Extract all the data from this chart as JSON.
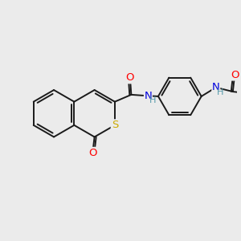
{
  "background_color": "#ebebeb",
  "bond_color": "#1a1a1a",
  "bond_width": 1.4,
  "atom_colors": {
    "O": "#ff0000",
    "S": "#ccaa00",
    "N": "#0000dd",
    "H": "#5599aa"
  },
  "font_size": 9.5,
  "fig_width": 3.0,
  "fig_height": 3.0,
  "dpi": 100,
  "scale": 1.1
}
